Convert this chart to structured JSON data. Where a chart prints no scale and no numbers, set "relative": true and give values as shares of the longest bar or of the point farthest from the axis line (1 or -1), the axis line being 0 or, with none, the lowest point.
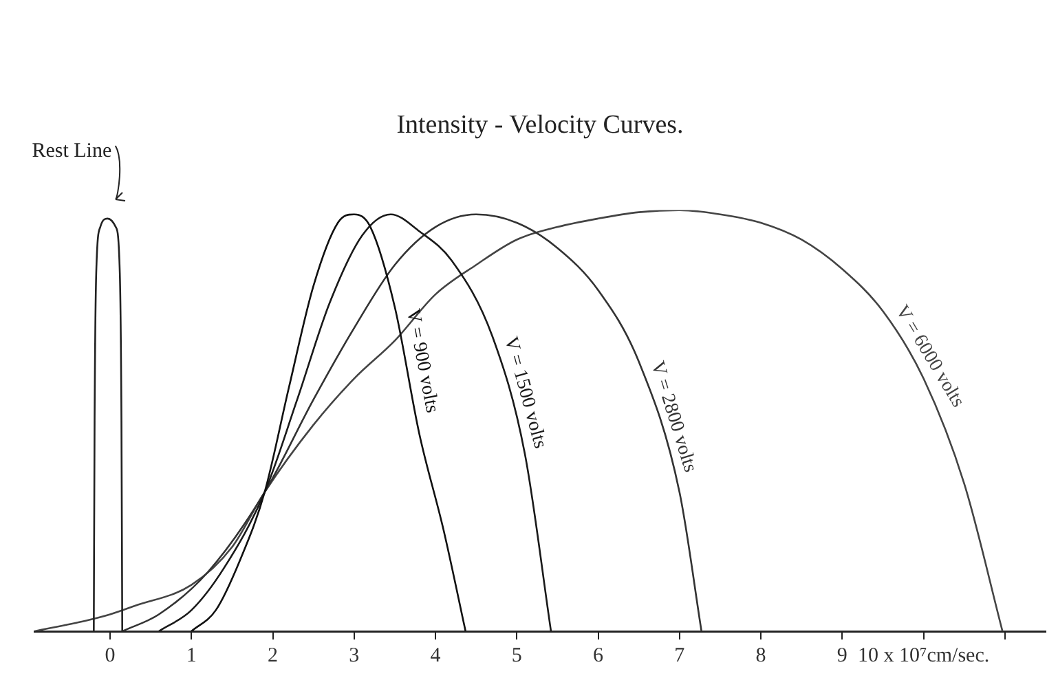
{
  "chart_data": {
    "type": "line",
    "title": "Intensity - Velocity Curves.",
    "relative": true,
    "grid": false,
    "legend": false,
    "xlim": [
      -0.93,
      11.5
    ],
    "xticks": [
      0,
      1,
      2,
      3,
      4,
      5,
      6,
      7,
      8,
      9,
      {
        "value": 10,
        "label": "10 x 10⁷cm/sec."
      },
      {
        "value": 11,
        "label": null
      }
    ],
    "series": [
      {
        "name": "Rest Line",
        "color": "#222222",
        "x": [
          -0.2,
          -0.19,
          -0.17,
          -0.12,
          -0.03,
          0.07,
          0.12,
          0.14,
          0.15
        ],
        "values": [
          0,
          0.5,
          0.85,
          0.96,
          0.98,
          0.96,
          0.85,
          0.5,
          0
        ]
      },
      {
        "name": "V = 900 volts",
        "color": "#111111",
        "x": [
          1,
          1.3,
          1.6,
          1.9,
          2.2,
          2.5,
          2.8,
          3.0,
          3.2,
          3.5,
          3.8,
          4.1,
          4.37
        ],
        "values": [
          0,
          0.05,
          0.17,
          0.33,
          0.58,
          0.82,
          0.97,
          0.99,
          0.96,
          0.77,
          0.47,
          0.24,
          0
        ]
      },
      {
        "name": "V = 1500 volts",
        "color": "#1a1a1a",
        "x": [
          0.6,
          1.0,
          1.4,
          1.9,
          2.3,
          2.7,
          3.1,
          3.45,
          3.8,
          4.2,
          4.7,
          5.1,
          5.42
        ],
        "values": [
          0,
          0.05,
          0.15,
          0.33,
          0.55,
          0.78,
          0.94,
          0.99,
          0.95,
          0.88,
          0.7,
          0.42,
          0
        ]
      },
      {
        "name": "V = 2800 volts",
        "color": "#333333",
        "x": [
          0.15,
          0.6,
          1.2,
          1.9,
          2.5,
          3.0,
          3.5,
          4.0,
          4.5,
          5.0,
          5.5,
          6.0,
          6.5,
          7.0,
          7.27
        ],
        "values": [
          0,
          0.04,
          0.14,
          0.33,
          0.55,
          0.72,
          0.87,
          0.96,
          0.99,
          0.97,
          0.91,
          0.81,
          0.64,
          0.33,
          0
        ]
      },
      {
        "name": "V = 6000 volts",
        "color": "#444444",
        "x": [
          -0.93,
          -0.3,
          0,
          0.3,
          1.0,
          1.5,
          1.9,
          2.5,
          3.0,
          3.5,
          4.0,
          4.5,
          5.0,
          5.5,
          6.0,
          6.5,
          7.0,
          7.5,
          8.0,
          8.5,
          9.0,
          9.5,
          10.0,
          10.5,
          10.97
        ],
        "values": [
          0,
          0.025,
          0.04,
          0.06,
          0.11,
          0.2,
          0.33,
          0.49,
          0.6,
          0.69,
          0.8,
          0.87,
          0.93,
          0.96,
          0.98,
          0.995,
          1,
          0.99,
          0.97,
          0.93,
          0.86,
          0.76,
          0.6,
          0.35,
          0
        ]
      }
    ]
  }
}
